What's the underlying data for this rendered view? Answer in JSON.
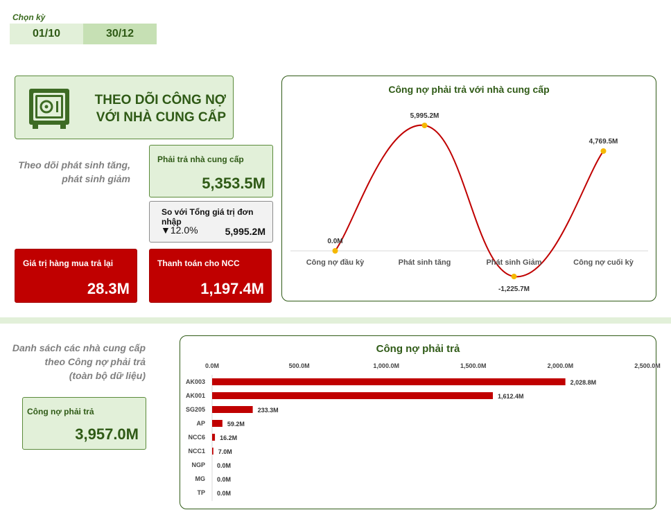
{
  "period": {
    "label": "Chọn kỳ",
    "from": "01/10",
    "to": "30/12"
  },
  "title": {
    "line1": "THEO DÕI CÔNG NỢ",
    "line2": "VỚI NHÀ CUNG CẤP"
  },
  "note_top": {
    "line1": "Theo dõi phát sinh tăng,",
    "line2": "phát sinh giảm"
  },
  "kpis": {
    "payable": {
      "label": "Phải trả nhà cung cấp",
      "value": "5,353.5M"
    },
    "compare": {
      "label": "So với Tổng giá trị đơn nhập",
      "pct": "12.0%",
      "arrow": "▼",
      "value": "5,995.2M"
    },
    "returns": {
      "label": "Giá trị hàng mua trả lại",
      "value": "28.3M"
    },
    "payment": {
      "label": "Thanh toán cho NCC",
      "value": "1,197.4M"
    },
    "total_payable": {
      "label": "Công nợ phải trả",
      "value": "3,957.0M"
    }
  },
  "note_bottom": {
    "line1": "Danh sách các nhà cung cấp",
    "line2": "theo Công nợ phải trả",
    "line3": "(toàn bộ dữ liệu)"
  },
  "colors": {
    "accent_green": "#2f5a16",
    "light_green": "#e2f0d9",
    "red": "#c00000",
    "marker": "#f5b800"
  },
  "chart_data": [
    {
      "type": "line",
      "title": "Công nợ phải trả với nhà cung cấp",
      "categories": [
        "Công nợ đầu kỳ",
        "Phát sinh tăng",
        "Phát sinh Giảm",
        "Công nợ cuối kỳ"
      ],
      "values": [
        0.0,
        5995.2,
        -1225.7,
        4769.5
      ],
      "data_labels": [
        "0.0M",
        "5,995.2M",
        "-1,225.7M",
        "4,769.5M"
      ],
      "smooth": true,
      "grid": false,
      "ylim": [
        -1300,
        6100
      ]
    },
    {
      "type": "bar",
      "orientation": "horizontal",
      "title": "Công nợ phải trả",
      "categories": [
        "AK003",
        "AK001",
        "SG205",
        "AP",
        "NCC6",
        "NCC1",
        "NGP",
        "MG",
        "TP"
      ],
      "values": [
        2028.8,
        1612.4,
        233.3,
        59.2,
        16.2,
        7.0,
        0.0,
        0.0,
        0.0
      ],
      "data_labels": [
        "2,028.8M",
        "1,612.4M",
        "233.3M",
        "59.2M",
        "16.2M",
        "7.0M",
        "0.0M",
        "0.0M",
        "0.0M"
      ],
      "xlim": [
        0,
        2500
      ],
      "xticks": [
        "0.0M",
        "500.0M",
        "1,000.0M",
        "1,500.0M",
        "2,000.0M",
        "2,500.0M"
      ],
      "grid": false
    }
  ]
}
